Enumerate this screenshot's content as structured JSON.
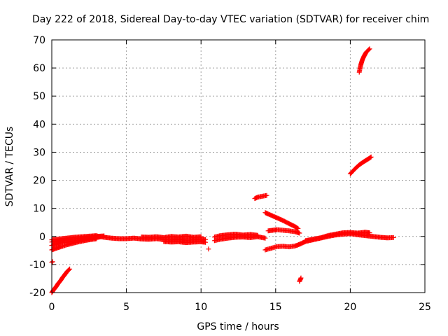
{
  "chart_data": {
    "type": "scatter",
    "title": "Day 222 of 2018, Sidereal Day-to-day VTEC variation (SDTVAR) for receiver chim",
    "xlabel": "GPS time / hours",
    "ylabel": "SDTVAR / TECUs",
    "xlim": [
      0,
      25
    ],
    "ylim": [
      -20,
      70
    ],
    "xticks": [
      "0",
      "5",
      "10",
      "15",
      "20",
      "25"
    ],
    "yticks": [
      "-20",
      "-10",
      "0",
      "10",
      "20",
      "30",
      "40",
      "50",
      "60",
      "70"
    ],
    "grid": true,
    "marker_color": "#ff0000",
    "marker": "plus",
    "series": [
      {
        "x": [
          0,
          0.1,
          0.2,
          0.3,
          0.4,
          0.5,
          0.6,
          0.7,
          0.8,
          0.9,
          1.0,
          1.1,
          1.2
        ],
        "y": [
          -20,
          -19.2,
          -18.5,
          -17.8,
          -17.0,
          -16.3,
          -15.6,
          -14.8,
          -14.1,
          -13.4,
          -12.7,
          -12.1,
          -11.6
        ]
      },
      {
        "x": [
          0,
          0.05
        ],
        "y": [
          -9.2,
          -9.0
        ]
      },
      {
        "x": [
          0,
          0.3,
          0.6,
          1.0,
          1.5,
          2.0,
          2.5,
          3.0
        ],
        "y": [
          -4.8,
          -4.2,
          -3.7,
          -3.0,
          -2.3,
          -1.7,
          -1.2,
          -0.8
        ]
      },
      {
        "x": [
          0,
          0.3,
          0.6,
          1.0,
          1.5,
          2.0,
          2.5,
          3.0,
          3.3
        ],
        "y": [
          -3.2,
          -2.8,
          -2.4,
          -2.0,
          -1.6,
          -1.2,
          -0.8,
          -0.4,
          -0.1
        ]
      },
      {
        "x": [
          0,
          0.5,
          1.0,
          1.5,
          2.0,
          2.5,
          3.0,
          3.5
        ],
        "y": [
          -2.0,
          -1.5,
          -1.2,
          -0.9,
          -0.6,
          -0.3,
          0.0,
          0.2
        ]
      },
      {
        "x": [
          0,
          0.5,
          1.0,
          1.5,
          2.0,
          2.5,
          3.0
        ],
        "y": [
          -1.2,
          -0.9,
          -0.6,
          -0.3,
          -0.1,
          0.1,
          0.3
        ]
      },
      {
        "x": [
          3.0,
          3.5,
          4.0,
          4.5,
          5.0,
          5.5,
          6.0,
          6.5,
          7.0,
          7.5,
          8.0,
          8.5,
          9.0,
          9.5,
          10.0,
          10.3
        ],
        "y": [
          0.2,
          -0.3,
          -0.6,
          -0.8,
          -0.8,
          -0.6,
          -0.9,
          -1.0,
          -0.8,
          -1.1,
          -1.2,
          -1.0,
          -1.3,
          -1.2,
          -1.0,
          -1.1
        ]
      },
      {
        "x": [
          6.0,
          6.5,
          7.0,
          7.5,
          8.0,
          8.5,
          9.0,
          9.5,
          10.0
        ],
        "y": [
          -0.2,
          -0.3,
          -0.1,
          -0.4,
          0.0,
          -0.2,
          0.1,
          -0.3,
          -0.1
        ]
      },
      {
        "x": [
          7.5,
          8.0,
          8.5,
          9.0,
          9.5,
          10.0,
          10.3
        ],
        "y": [
          -1.8,
          -2.0,
          -1.9,
          -2.2,
          -2.0,
          -1.9,
          -2.1
        ]
      },
      {
        "x": [
          10.5
        ],
        "y": [
          -4.5
        ]
      },
      {
        "x": [
          10.9,
          11.3,
          11.8,
          12.3,
          12.8,
          13.3,
          13.8,
          14.3
        ],
        "y": [
          -1.5,
          -1.0,
          -0.6,
          -0.3,
          -0.2,
          -0.4,
          -0.1,
          -0.6
        ]
      },
      {
        "x": [
          10.9,
          11.3,
          11.8,
          12.3,
          12.8,
          13.3,
          13.8
        ],
        "y": [
          -0.2,
          0.3,
          0.6,
          0.8,
          0.5,
          0.7,
          0.4
        ]
      },
      {
        "x": [
          13.6,
          13.8,
          14.0,
          14.2,
          14.4
        ],
        "y": [
          13.5,
          14.0,
          14.2,
          14.4,
          14.6
        ]
      },
      {
        "x": [
          14.3,
          14.5,
          14.8,
          15.1,
          15.4,
          15.7,
          16.0,
          16.3,
          16.5
        ],
        "y": [
          8.5,
          8.0,
          7.3,
          6.6,
          5.9,
          5.1,
          4.3,
          3.5,
          2.8
        ]
      },
      {
        "x": [
          14.5,
          14.8,
          15.1,
          15.5,
          15.9,
          16.3,
          16.6
        ],
        "y": [
          2.0,
          2.2,
          2.4,
          2.2,
          2.0,
          1.7,
          1.2
        ]
      },
      {
        "x": [
          14.3,
          14.7,
          15.1,
          15.5,
          15.9,
          16.3,
          16.6
        ],
        "y": [
          -4.8,
          -4.2,
          -3.6,
          -3.5,
          -3.7,
          -3.4,
          -2.8
        ]
      },
      {
        "x": [
          16.6,
          16.7
        ],
        "y": [
          -16.0,
          -14.8
        ]
      },
      {
        "x": [
          16.6,
          17.0,
          17.5,
          18.0,
          18.5,
          19.0,
          19.5,
          20.0,
          20.5,
          21.0,
          21.5,
          22.0,
          22.5,
          22.9
        ],
        "y": [
          -2.8,
          -1.8,
          -1.2,
          -0.6,
          0.0,
          0.5,
          0.8,
          1.0,
          0.6,
          0.3,
          0.0,
          -0.3,
          -0.5,
          -0.4
        ]
      },
      {
        "x": [
          17.0,
          17.5,
          18.0,
          18.5,
          19.0,
          19.5,
          20.0,
          20.5,
          21.0,
          21.3
        ],
        "y": [
          -1.5,
          -1.0,
          -0.5,
          0.3,
          0.8,
          1.3,
          1.4,
          1.2,
          1.5,
          1.3
        ]
      },
      {
        "x": [
          20.0,
          20.3,
          20.6,
          20.9,
          21.2,
          21.4
        ],
        "y": [
          22.3,
          24.0,
          25.5,
          26.6,
          27.6,
          28.3
        ]
      },
      {
        "x": [
          20.6,
          20.7,
          20.8,
          20.9,
          21.0,
          21.1,
          21.2,
          21.3
        ],
        "y": [
          58.5,
          61.0,
          62.8,
          64.0,
          65.0,
          65.8,
          66.3,
          66.8
        ]
      }
    ]
  }
}
